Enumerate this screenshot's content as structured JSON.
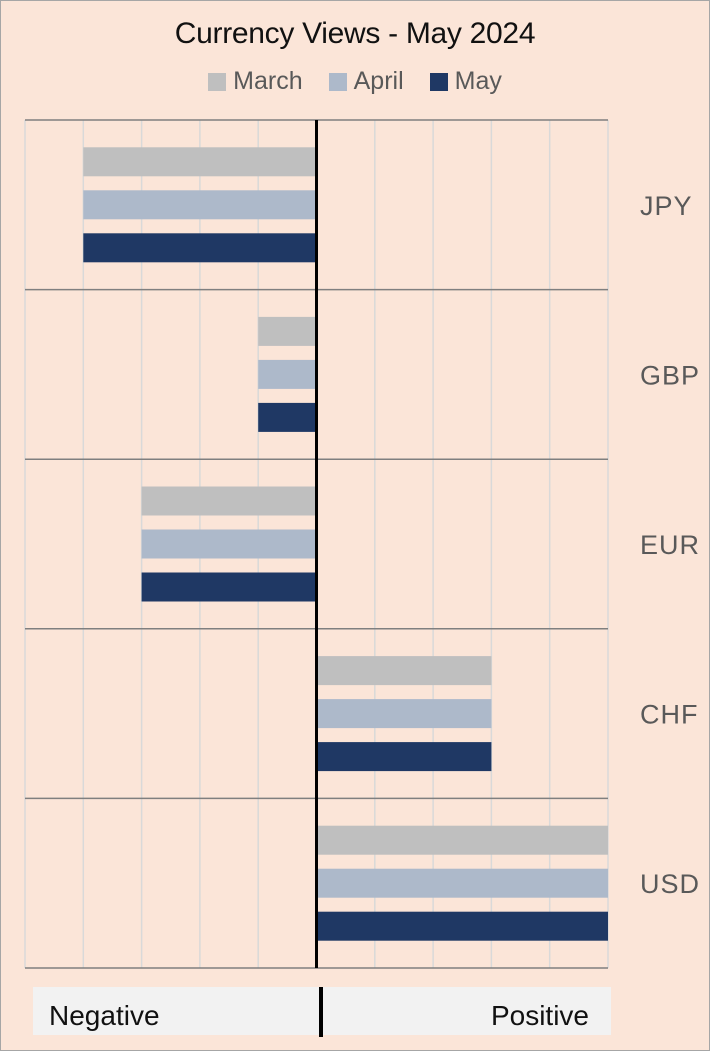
{
  "chart_data": {
    "type": "bar",
    "orientation": "horizontal",
    "title": "Currency Views - May 2024",
    "categories": [
      "JPY",
      "GBP",
      "EUR",
      "CHF",
      "USD"
    ],
    "series": [
      {
        "name": "March",
        "color": "#bfbfbf",
        "values": [
          -4,
          -1,
          -3,
          3,
          5
        ]
      },
      {
        "name": "April",
        "color": "#adb9ca",
        "values": [
          -4,
          -1,
          -3,
          3,
          5
        ]
      },
      {
        "name": "May",
        "color": "#1f3864",
        "values": [
          -4,
          -1,
          -3,
          3,
          5
        ]
      }
    ],
    "xlim": [
      -5,
      5
    ],
    "x_grid_step": 1,
    "grid": true,
    "legend_position": "top",
    "bottom_labels": {
      "negative": "Negative",
      "positive": "Positive"
    }
  }
}
